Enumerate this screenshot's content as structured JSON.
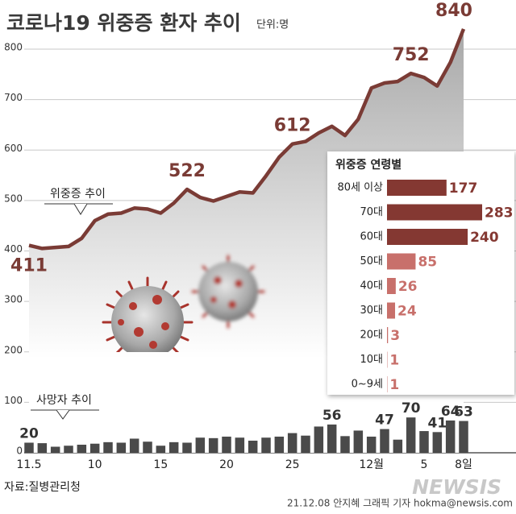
{
  "chart_data": [
    {
      "type": "line",
      "title": "코로나19 위중증 환자 추이",
      "unit": "단위:명",
      "categories": [
        "11.5",
        null,
        null,
        null,
        null,
        "10",
        null,
        null,
        null,
        null,
        "15",
        null,
        null,
        null,
        null,
        "20",
        null,
        null,
        null,
        null,
        "25",
        null,
        null,
        null,
        null,
        null,
        "12월",
        null,
        null,
        null,
        "5",
        null,
        null,
        "8일"
      ],
      "series": [
        {
          "name": "위중증 추이",
          "color": "#7a3b35",
          "values": [
            411,
            405,
            407,
            409,
            425,
            460,
            473,
            475,
            485,
            483,
            475,
            495,
            522,
            506,
            499,
            508,
            517,
            515,
            549,
            586,
            612,
            617,
            634,
            647,
            629,
            661,
            723,
            733,
            736,
            752,
            744,
            727,
            774,
            840
          ],
          "value_labels": [
            "411",
            null,
            null,
            null,
            null,
            null,
            null,
            null,
            null,
            null,
            null,
            null,
            "522",
            null,
            null,
            null,
            null,
            null,
            null,
            null,
            "612",
            null,
            null,
            null,
            null,
            null,
            null,
            null,
            null,
            "752",
            null,
            null,
            null,
            "840"
          ]
        }
      ],
      "ylim": [
        0,
        800
      ],
      "yticks": [
        0,
        100,
        200,
        300,
        400,
        500,
        600,
        700,
        800
      ],
      "grid": true
    },
    {
      "type": "bar",
      "series": [
        {
          "name": "사망자 추이",
          "color": "#4a4a4a",
          "values": [
            20,
            19,
            12,
            14,
            16,
            18,
            21,
            20,
            28,
            22,
            14,
            21,
            20,
            30,
            29,
            32,
            30,
            24,
            30,
            32,
            39,
            34,
            52,
            56,
            33,
            44,
            32,
            47,
            26,
            70,
            43,
            41,
            64,
            63
          ],
          "value_labels": [
            "20",
            null,
            null,
            null,
            null,
            null,
            null,
            null,
            null,
            null,
            null,
            null,
            null,
            null,
            null,
            null,
            null,
            null,
            null,
            null,
            null,
            null,
            null,
            "56",
            null,
            null,
            null,
            "47",
            null,
            "70",
            null,
            "41",
            "64",
            "63"
          ]
        }
      ]
    },
    {
      "type": "hbar",
      "title": "위중증 연령별",
      "categories": [
        "80세 이상",
        "70대",
        "60대",
        "50대",
        "40대",
        "30대",
        "20대",
        "10대",
        "0~9세"
      ],
      "values": [
        177,
        283,
        240,
        85,
        26,
        24,
        3,
        1,
        1
      ],
      "colors": [
        "#843832",
        "#843832",
        "#843832",
        "#c8706b",
        "#c8706b",
        "#c8706b",
        "#c8706b",
        "#c8706b",
        "#c8706b"
      ]
    }
  ],
  "source": "자료:질병관리청",
  "credit": "21.12.08 안지혜 그래픽 기자 hokma@newsis.com",
  "logo": "NEWSIS"
}
